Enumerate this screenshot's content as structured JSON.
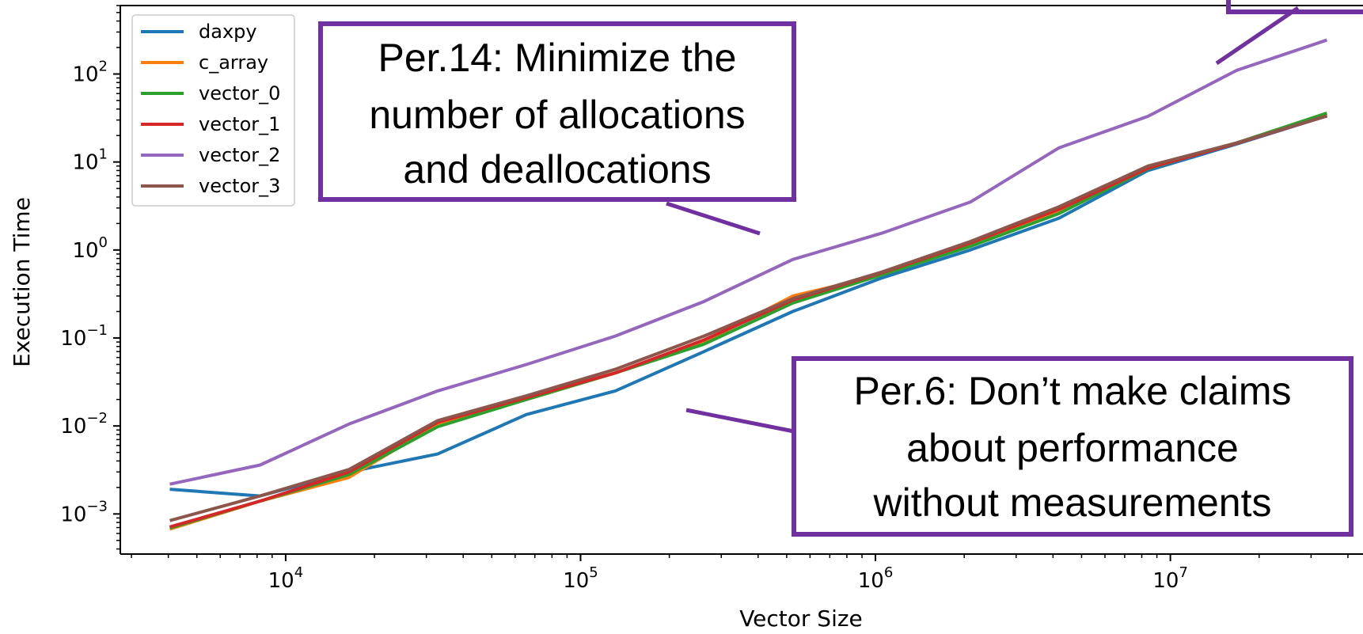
{
  "chart_data": {
    "type": "line",
    "xlabel": "Vector Size",
    "ylabel": "Execution Time",
    "xscale": "log",
    "yscale": "log",
    "xlim": [
      2750,
      45000000
    ],
    "ylim": [
      0.00035,
      600
    ],
    "x_ticks": [
      {
        "value": 10000,
        "base": "10",
        "exp": "4"
      },
      {
        "value": 100000,
        "base": "10",
        "exp": "5"
      },
      {
        "value": 1000000,
        "base": "10",
        "exp": "6"
      },
      {
        "value": 10000000,
        "base": "10",
        "exp": "7"
      }
    ],
    "y_ticks": [
      {
        "value": 0.001,
        "base": "10",
        "exp": "−3"
      },
      {
        "value": 0.01,
        "base": "10",
        "exp": "−2"
      },
      {
        "value": 0.1,
        "base": "10",
        "exp": "−1"
      },
      {
        "value": 1,
        "base": "10",
        "exp": "0"
      },
      {
        "value": 10,
        "base": "10",
        "exp": "1"
      },
      {
        "value": 100,
        "base": "10",
        "exp": "2"
      }
    ],
    "grid": false,
    "legend_position": "top-left",
    "x": [
      4096,
      8192,
      16384,
      32768,
      65536,
      131072,
      262144,
      524288,
      1048576,
      2097152,
      4194304,
      8388608,
      16777216,
      33554432
    ],
    "series": [
      {
        "name": "daxpy",
        "color": "#1f77b4",
        "values": [
          0.0019,
          0.0016,
          0.003,
          0.0048,
          0.0135,
          0.025,
          0.07,
          0.2,
          0.48,
          1.0,
          2.3,
          8.0,
          16.0,
          33.0
        ]
      },
      {
        "name": "c_array",
        "color": "#ff7f0e",
        "values": [
          0.00068,
          0.0014,
          0.0026,
          0.0105,
          0.02,
          0.04,
          0.09,
          0.3,
          0.52,
          1.15,
          2.7,
          8.5,
          16.5,
          34.0
        ]
      },
      {
        "name": "vector_0",
        "color": "#2ca02c",
        "values": [
          0.0007,
          0.0014,
          0.0028,
          0.0098,
          0.02,
          0.04,
          0.085,
          0.25,
          0.52,
          1.1,
          2.6,
          8.4,
          16.5,
          35.5
        ]
      },
      {
        "name": "vector_1",
        "color": "#d62728",
        "values": [
          0.00072,
          0.0014,
          0.003,
          0.011,
          0.021,
          0.04,
          0.095,
          0.27,
          0.55,
          1.2,
          2.9,
          8.5,
          16.3,
          33.0
        ]
      },
      {
        "name": "vector_2",
        "color": "#9467bd",
        "values": [
          0.0022,
          0.0036,
          0.0105,
          0.025,
          0.05,
          0.105,
          0.26,
          0.78,
          1.55,
          3.5,
          14.5,
          33.0,
          110.0,
          240.0
        ]
      },
      {
        "name": "vector_3",
        "color": "#8c564b",
        "values": [
          0.00085,
          0.0016,
          0.0032,
          0.0115,
          0.022,
          0.044,
          0.105,
          0.28,
          0.56,
          1.25,
          3.1,
          9.0,
          16.5,
          33.0
        ]
      }
    ],
    "annotations": [
      {
        "text": [
          "Per.14: Minimize the",
          "number of allocations",
          "and deallocations"
        ]
      },
      {
        "text": [
          "Per.6: Don’t make claims",
          "about performance",
          "without measurements"
        ]
      }
    ]
  },
  "colors": {
    "annotation_border": "#7030a0",
    "axis": "#000000",
    "background": "#ffffff"
  }
}
